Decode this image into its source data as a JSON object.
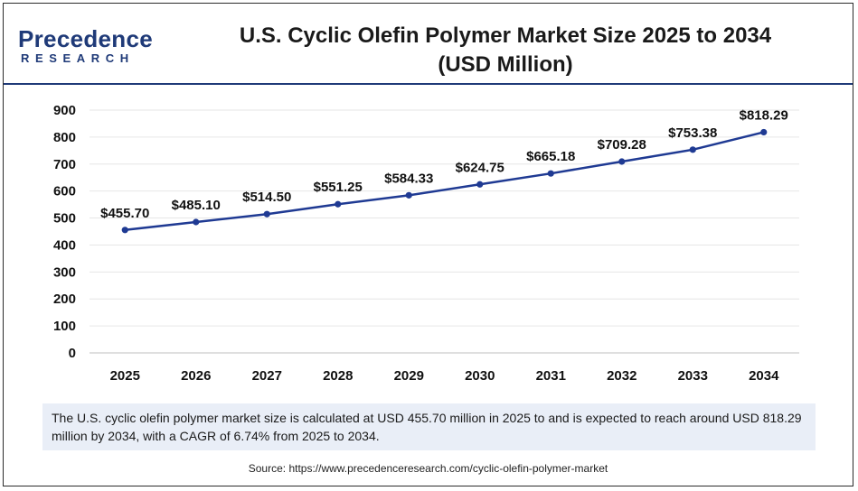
{
  "logo": {
    "name": "Precedence",
    "sub": "RESEARCH"
  },
  "title_line1": "U.S. Cyclic Olefin Polymer Market  Size 2025 to 2034",
  "title_line2": "(USD Million)",
  "colors": {
    "line": "#1f3a93",
    "accent": "#1f3a78",
    "summary_bg": "#e9eef7",
    "grid": "#e6e6e6"
  },
  "chart_data": {
    "type": "line",
    "categories": [
      "2025",
      "2026",
      "2027",
      "2028",
      "2029",
      "2030",
      "2031",
      "2032",
      "2033",
      "2034"
    ],
    "values": [
      455.7,
      485.1,
      514.5,
      551.25,
      584.33,
      624.75,
      665.18,
      709.28,
      753.38,
      818.29
    ],
    "data_labels": [
      "$455.70",
      "$485.10",
      "$514.50",
      "$551.25",
      "$584.33",
      "$624.75",
      "$665.18",
      "$709.28",
      "$753.38",
      "$818.29"
    ],
    "yticks": [
      "0",
      "100",
      "200",
      "300",
      "400",
      "500",
      "600",
      "700",
      "800",
      "900"
    ],
    "ylim": [
      0,
      900
    ],
    "grid": true,
    "legend": "none",
    "xlabel": "",
    "ylabel": ""
  },
  "summary": "The U.S. cyclic olefin polymer market size is calculated at USD 455.70 million in 2025 to and is expected to reach around USD 818.29 million by 2034, with a CAGR of 6.74% from 2025 to 2034.",
  "source": "Source: https://www.precedenceresearch.com/cyclic-olefin-polymer-market"
}
